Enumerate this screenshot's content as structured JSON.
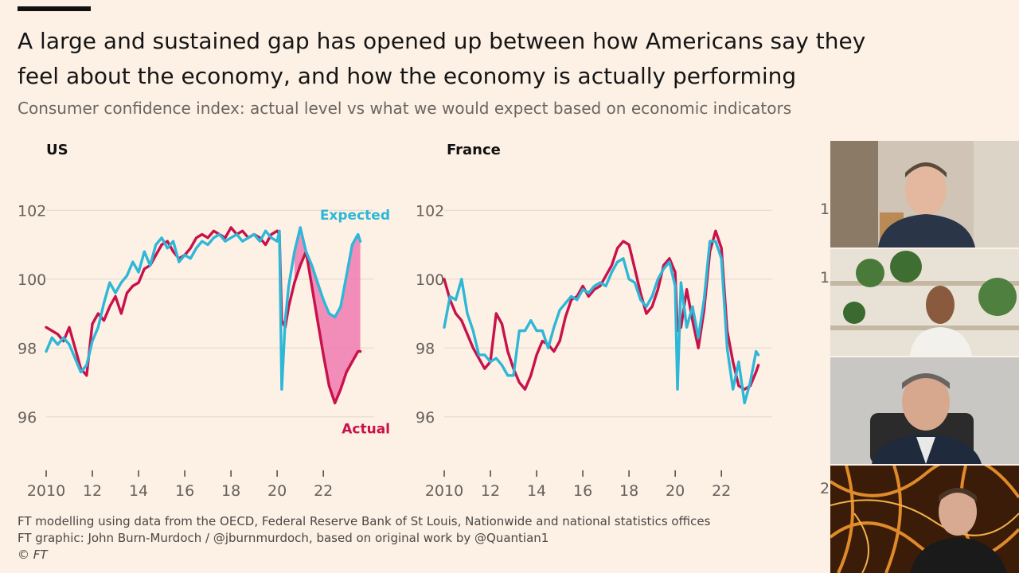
{
  "header": {
    "title": "A large and sustained gap has opened up between how Americans say they feel about the economy, and how the economy is actually performing",
    "subtitle": "Consumer confidence index: actual level vs what we would expect based on economic indicators"
  },
  "colors": {
    "actual": "#c8124a",
    "expected": "#2eb7d6",
    "gap_fill": "#f07ab0",
    "background": "#fdf1e6"
  },
  "chart_data": [
    {
      "type": "line",
      "title": "US",
      "xlim": [
        2010,
        2024.2
      ],
      "ylim": [
        95,
        103
      ],
      "xticks": [
        2010,
        2012,
        2014,
        2016,
        2018,
        2020,
        2022
      ],
      "xtick_labels": [
        "2010",
        "12",
        "14",
        "16",
        "18",
        "20",
        "22"
      ],
      "yticks": [
        96,
        98,
        100,
        102
      ],
      "grid": true,
      "annotations": [
        {
          "text": "Expected",
          "series": "Expected"
        },
        {
          "text": "Actual",
          "series": "Actual"
        }
      ],
      "shaded_gap": {
        "from": 2020.6,
        "to": 2023.6
      },
      "series": [
        {
          "name": "Actual",
          "x": [
            2010.0,
            2010.25,
            2010.5,
            2010.75,
            2011.0,
            2011.25,
            2011.5,
            2011.75,
            2012.0,
            2012.25,
            2012.5,
            2012.75,
            2013.0,
            2013.25,
            2013.5,
            2013.75,
            2014.0,
            2014.25,
            2014.5,
            2014.75,
            2015.0,
            2015.25,
            2015.5,
            2015.75,
            2016.0,
            2016.25,
            2016.5,
            2016.75,
            2017.0,
            2017.25,
            2017.5,
            2017.75,
            2018.0,
            2018.25,
            2018.5,
            2018.75,
            2019.0,
            2019.25,
            2019.5,
            2019.75,
            2020.0,
            2020.1,
            2020.2,
            2020.35,
            2020.5,
            2020.75,
            2021.0,
            2021.25,
            2021.5,
            2021.75,
            2022.0,
            2022.25,
            2022.5,
            2022.75,
            2023.0,
            2023.25,
            2023.5,
            2023.6
          ],
          "values": [
            98.6,
            98.5,
            98.4,
            98.2,
            98.6,
            98.0,
            97.4,
            97.2,
            98.7,
            99.0,
            98.8,
            99.2,
            99.5,
            99.0,
            99.6,
            99.8,
            99.9,
            100.3,
            100.4,
            100.7,
            101.0,
            101.1,
            100.8,
            100.6,
            100.7,
            100.9,
            101.2,
            101.3,
            101.2,
            101.4,
            101.3,
            101.2,
            101.5,
            101.3,
            101.4,
            101.2,
            101.3,
            101.2,
            101.0,
            101.3,
            101.4,
            101.3,
            98.8,
            98.6,
            99.2,
            99.9,
            100.4,
            100.8,
            99.8,
            98.8,
            97.8,
            96.9,
            96.4,
            96.8,
            97.3,
            97.6,
            97.9,
            97.9
          ]
        },
        {
          "name": "Expected",
          "x": [
            2010.0,
            2010.25,
            2010.5,
            2010.75,
            2011.0,
            2011.25,
            2011.5,
            2011.75,
            2012.0,
            2012.25,
            2012.5,
            2012.75,
            2013.0,
            2013.25,
            2013.5,
            2013.75,
            2014.0,
            2014.25,
            2014.5,
            2014.75,
            2015.0,
            2015.25,
            2015.5,
            2015.75,
            2016.0,
            2016.25,
            2016.5,
            2016.75,
            2017.0,
            2017.25,
            2017.5,
            2017.75,
            2018.0,
            2018.25,
            2018.5,
            2018.75,
            2019.0,
            2019.25,
            2019.5,
            2019.75,
            2020.0,
            2020.1,
            2020.2,
            2020.35,
            2020.5,
            2020.75,
            2021.0,
            2021.25,
            2021.5,
            2021.75,
            2022.0,
            2022.25,
            2022.5,
            2022.75,
            2023.0,
            2023.25,
            2023.5,
            2023.6
          ],
          "values": [
            97.9,
            98.3,
            98.1,
            98.3,
            98.1,
            97.7,
            97.3,
            97.5,
            98.2,
            98.6,
            99.3,
            99.9,
            99.6,
            99.9,
            100.1,
            100.5,
            100.2,
            100.8,
            100.4,
            101.0,
            101.2,
            100.9,
            101.1,
            100.5,
            100.7,
            100.6,
            100.9,
            101.1,
            101.0,
            101.2,
            101.3,
            101.1,
            101.2,
            101.3,
            101.1,
            101.2,
            101.3,
            101.1,
            101.4,
            101.2,
            101.1,
            101.4,
            96.8,
            98.8,
            99.8,
            100.8,
            101.5,
            100.8,
            100.4,
            99.9,
            99.4,
            99.0,
            98.9,
            99.2,
            100.1,
            101.0,
            101.3,
            101.1
          ]
        }
      ]
    },
    {
      "type": "line",
      "title": "France",
      "xlim": [
        2010,
        2024.2
      ],
      "ylim": [
        95,
        103
      ],
      "xticks": [
        2010,
        2012,
        2014,
        2016,
        2018,
        2020,
        2022
      ],
      "xtick_labels": [
        "2010",
        "12",
        "14",
        "16",
        "18",
        "20",
        "22"
      ],
      "yticks": [
        96,
        98,
        100,
        102
      ],
      "grid": true,
      "series": [
        {
          "name": "Actual",
          "x": [
            2010.0,
            2010.25,
            2010.5,
            2010.75,
            2011.0,
            2011.25,
            2011.5,
            2011.75,
            2012.0,
            2012.25,
            2012.5,
            2012.75,
            2013.0,
            2013.25,
            2013.5,
            2013.75,
            2014.0,
            2014.25,
            2014.5,
            2014.75,
            2015.0,
            2015.25,
            2015.5,
            2015.75,
            2016.0,
            2016.25,
            2016.5,
            2016.75,
            2017.0,
            2017.25,
            2017.5,
            2017.75,
            2018.0,
            2018.25,
            2018.5,
            2018.75,
            2019.0,
            2019.25,
            2019.5,
            2019.75,
            2020.0,
            2020.1,
            2020.25,
            2020.5,
            2020.75,
            2021.0,
            2021.25,
            2021.5,
            2021.75,
            2022.0,
            2022.25,
            2022.5,
            2022.75,
            2023.0,
            2023.25,
            2023.5,
            2023.6
          ],
          "values": [
            100.0,
            99.4,
            99.0,
            98.8,
            98.4,
            98.0,
            97.7,
            97.4,
            97.6,
            99.0,
            98.7,
            97.9,
            97.4,
            97.0,
            96.8,
            97.2,
            97.8,
            98.2,
            98.1,
            97.9,
            98.2,
            98.9,
            99.4,
            99.5,
            99.8,
            99.5,
            99.7,
            99.8,
            100.1,
            100.4,
            100.9,
            101.1,
            101.0,
            100.3,
            99.6,
            99.0,
            99.2,
            99.7,
            100.4,
            100.6,
            100.2,
            98.5,
            98.6,
            99.7,
            98.8,
            98.0,
            99.1,
            100.8,
            101.4,
            100.9,
            98.5,
            97.6,
            96.9,
            96.8,
            96.9,
            97.3,
            97.5
          ]
        },
        {
          "name": "Expected",
          "x": [
            2010.0,
            2010.25,
            2010.5,
            2010.75,
            2011.0,
            2011.25,
            2011.5,
            2011.75,
            2012.0,
            2012.25,
            2012.5,
            2012.75,
            2013.0,
            2013.25,
            2013.5,
            2013.75,
            2014.0,
            2014.25,
            2014.5,
            2014.75,
            2015.0,
            2015.25,
            2015.5,
            2015.75,
            2016.0,
            2016.25,
            2016.5,
            2016.75,
            2017.0,
            2017.25,
            2017.5,
            2017.75,
            2018.0,
            2018.25,
            2018.5,
            2018.75,
            2019.0,
            2019.25,
            2019.5,
            2019.75,
            2020.0,
            2020.1,
            2020.25,
            2020.5,
            2020.75,
            2021.0,
            2021.25,
            2021.5,
            2021.75,
            2022.0,
            2022.25,
            2022.5,
            2022.75,
            2023.0,
            2023.25,
            2023.5,
            2023.6
          ],
          "values": [
            98.6,
            99.5,
            99.4,
            100.0,
            99.0,
            98.5,
            97.8,
            97.8,
            97.6,
            97.7,
            97.5,
            97.2,
            97.2,
            98.5,
            98.5,
            98.8,
            98.5,
            98.5,
            98.0,
            98.6,
            99.1,
            99.3,
            99.5,
            99.4,
            99.7,
            99.6,
            99.8,
            99.9,
            99.8,
            100.2,
            100.5,
            100.6,
            100.0,
            99.9,
            99.4,
            99.2,
            99.5,
            100.0,
            100.3,
            100.5,
            99.8,
            96.8,
            99.9,
            98.6,
            99.2,
            98.3,
            99.4,
            101.1,
            101.1,
            100.6,
            98.0,
            96.8,
            97.6,
            96.4,
            97.0,
            97.9,
            97.8
          ]
        }
      ]
    }
  ],
  "source": {
    "line1": "FT modelling using data from the OECD, Federal Reserve Bank of St Louis, Nationwide and national statistics offices",
    "line2": "FT graphic: John Burn-Murdoch / @jburnmurdoch, based on original work by @Quantian1",
    "line3": "© FT"
  }
}
